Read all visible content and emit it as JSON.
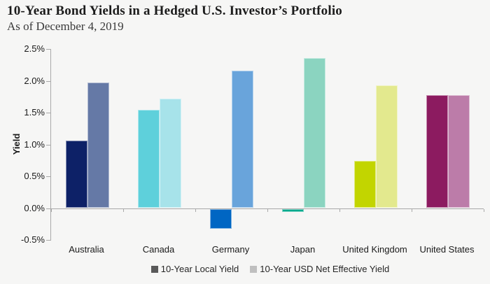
{
  "chart_data": {
    "type": "bar",
    "title": "10-Year Bond Yields in a Hedged U.S. Investor’s Portfolio",
    "subtitle": "As of December 4, 2019",
    "ylabel": "Yield",
    "ylim": [
      -0.5,
      2.5
    ],
    "ytick_step": 0.5,
    "ytick_labels": [
      "2.5%",
      "2.0%",
      "1.5%",
      "1.0%",
      "0.5%",
      "0.0%",
      "-0.5%"
    ],
    "grid": false,
    "legend_position": "bottom",
    "axis_color": "#a9a9a9",
    "text_color": "#1a1a1a",
    "series": [
      {
        "key": "local",
        "name": "10-Year Local Yield",
        "swatch": "#595959"
      },
      {
        "key": "usd",
        "name": "10-Year USD Net Effective Yield",
        "swatch": "#bfbfbf"
      }
    ],
    "groups": [
      {
        "label": "Australia",
        "local": 1.06,
        "usd": 1.97,
        "colors": {
          "local": "#0d2167",
          "usd": "#6579a6"
        }
      },
      {
        "label": "Canada",
        "local": 1.54,
        "usd": 1.72,
        "colors": {
          "local": "#5ed0db",
          "usd": "#a7e3ea"
        }
      },
      {
        "label": "Germany",
        "local": -0.31,
        "usd": 2.16,
        "colors": {
          "local": "#0066c3",
          "usd": "#69a4db"
        }
      },
      {
        "label": "Japan",
        "local": -0.05,
        "usd": 2.36,
        "colors": {
          "local": "#00a98c",
          "usd": "#8bd4c0"
        }
      },
      {
        "label": "United Kingdom",
        "local": 0.74,
        "usd": 1.93,
        "colors": {
          "local": "#c2d500",
          "usd": "#e3e98e"
        }
      },
      {
        "label": "United States",
        "local": 1.78,
        "usd": 1.78,
        "colors": {
          "local": "#8c1b60",
          "usd": "#bc7ca9"
        }
      }
    ]
  }
}
